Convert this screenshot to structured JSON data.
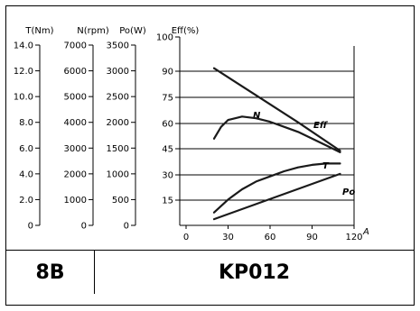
{
  "chart_data": {
    "type": "line",
    "axis_headers": [
      "T(Nm)",
      "N(rpm)",
      "Po(W)",
      "Eff(%)"
    ],
    "y_axes": [
      {
        "name": "T(Nm)",
        "ticks": [
          "14.0",
          "12.0",
          "10.0",
          "8.0",
          "6.0",
          "4.0",
          "2.0",
          "0"
        ],
        "ylim": [
          0,
          14
        ]
      },
      {
        "name": "N(rpm)",
        "ticks": [
          "7000",
          "6000",
          "5000",
          "4000",
          "3000",
          "2000",
          "1000",
          "0"
        ],
        "ylim": [
          0,
          7000
        ]
      },
      {
        "name": "Po(W)",
        "ticks": [
          "3500",
          "3000",
          "2500",
          "2000",
          "1500",
          "1000",
          "500",
          "0"
        ],
        "ylim": [
          0,
          3500
        ]
      },
      {
        "name": "Eff(%)",
        "ticks": [
          "100",
          "90",
          "75",
          "60",
          "45",
          "30",
          "15"
        ],
        "ylim": [
          0,
          105
        ]
      }
    ],
    "x_ticks": [
      "0",
      "30",
      "60",
      "90",
      "120"
    ],
    "x_unit": "A",
    "xlim": [
      0,
      120
    ],
    "grid_lines_eff": [
      90,
      75,
      60,
      45,
      30,
      15
    ],
    "series": [
      {
        "name": "N",
        "axis": "N(rpm)",
        "x": [
          20,
          50,
          80,
          110
        ],
        "y": [
          6100,
          5050,
          4000,
          2900
        ]
      },
      {
        "name": "Eff",
        "axis": "Eff(%)",
        "x": [
          20,
          25,
          30,
          40,
          50,
          60,
          70,
          80,
          90,
          100,
          110
        ],
        "y": [
          51,
          58,
          62,
          64,
          63,
          61,
          58,
          55,
          51,
          47,
          43
        ]
      },
      {
        "name": "T",
        "axis": "T(Nm)",
        "x": [
          20,
          30,
          40,
          50,
          60,
          70,
          80,
          90,
          100,
          110
        ],
        "y": [
          1.0,
          2.0,
          2.8,
          3.4,
          3.8,
          4.2,
          4.5,
          4.7,
          4.8,
          4.8
        ]
      },
      {
        "name": "Po",
        "axis": "Po(W)",
        "x": [
          20,
          110
        ],
        "y": [
          120,
          1000
        ]
      }
    ]
  },
  "footer": {
    "code": "8B",
    "model": "KP012"
  }
}
